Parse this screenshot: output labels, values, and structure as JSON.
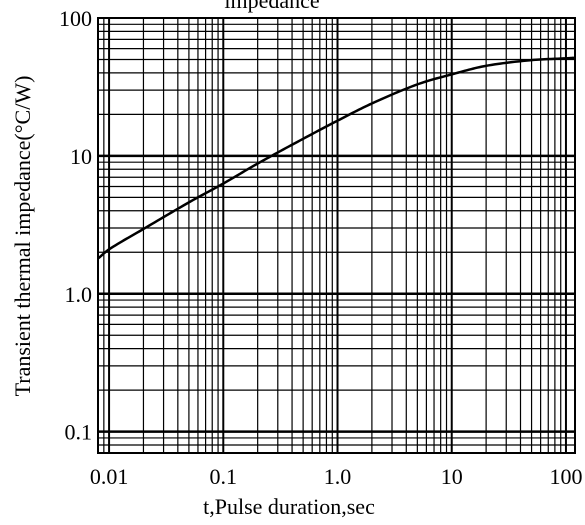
{
  "chart_data": {
    "type": "line",
    "title": "impedance",
    "xlabel": "t,Pulse duration,sec",
    "ylabel": "Transient thermal impedance(°C/W)",
    "x_scale": "log",
    "y_scale": "log",
    "xlim": [
      0.008,
      120
    ],
    "ylim": [
      0.07,
      100
    ],
    "x_ticks": [
      {
        "value": 0.01,
        "label": "0.01"
      },
      {
        "value": 0.1,
        "label": "0.1"
      },
      {
        "value": 1,
        "label": "1.0"
      },
      {
        "value": 10,
        "label": "10"
      },
      {
        "value": 100,
        "label": "100"
      }
    ],
    "y_ticks": [
      {
        "value": 0.1,
        "label": "0.1"
      },
      {
        "value": 1,
        "label": "1.0"
      },
      {
        "value": 10,
        "label": "10"
      },
      {
        "value": 100,
        "label": "100"
      }
    ],
    "grid": true,
    "series": [
      {
        "color": "#000000",
        "x": [
          0.008,
          0.01,
          0.02,
          0.05,
          0.1,
          0.2,
          0.5,
          1,
          2,
          5,
          10,
          20,
          50,
          100,
          120
        ],
        "y": [
          1.8,
          2.1,
          2.95,
          4.6,
          6.3,
          8.8,
          13.3,
          18,
          24,
          33,
          39,
          45,
          49.5,
          51,
          51.5
        ]
      }
    ]
  }
}
